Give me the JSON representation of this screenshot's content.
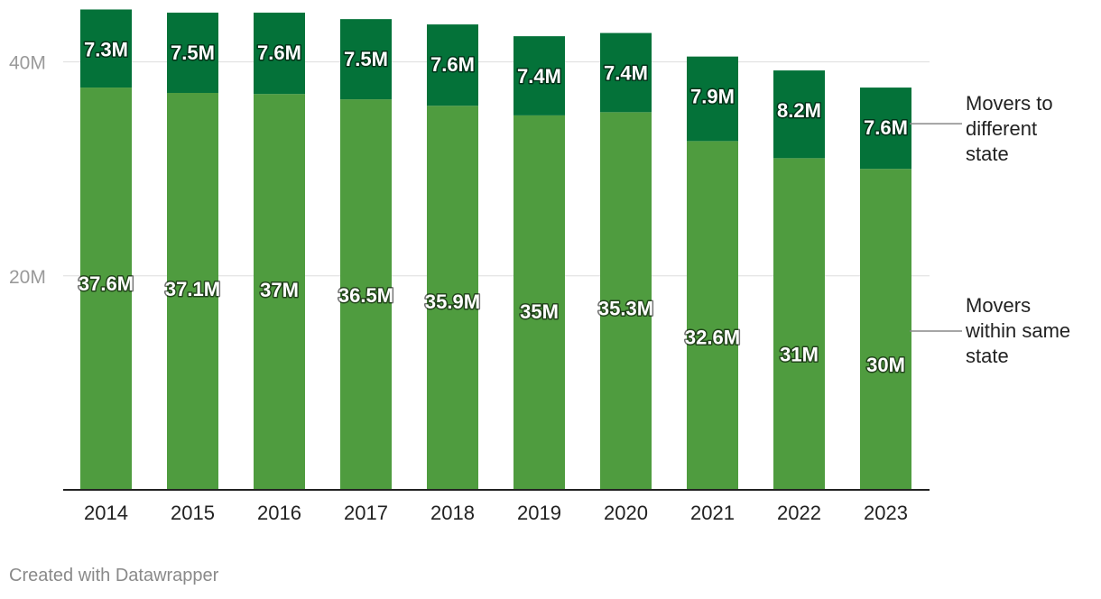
{
  "chart_data": {
    "type": "bar",
    "stacked": true,
    "categories": [
      "2014",
      "2015",
      "2016",
      "2017",
      "2018",
      "2019",
      "2020",
      "2021",
      "2022",
      "2023"
    ],
    "series": [
      {
        "name": "Movers within same state",
        "values": [
          37.6,
          37.1,
          37.0,
          36.5,
          35.9,
          35.0,
          35.3,
          32.6,
          31.0,
          30.0
        ],
        "labels": [
          "37.6M",
          "37.1M",
          "37M",
          "36.5M",
          "35.9M",
          "35M",
          "35.3M",
          "32.6M",
          "31M",
          "30M"
        ],
        "color": "#4f9c3f"
      },
      {
        "name": "Movers to different state",
        "values": [
          7.3,
          7.5,
          7.6,
          7.5,
          7.6,
          7.4,
          7.4,
          7.9,
          8.2,
          7.6
        ],
        "labels": [
          "7.3M",
          "7.5M",
          "7.6M",
          "7.5M",
          "7.6M",
          "7.4M",
          "7.4M",
          "7.9M",
          "8.2M",
          "7.6M"
        ],
        "color": "#047239"
      }
    ],
    "legend_lines": {
      "different_state": [
        "Movers to",
        "different",
        "state"
      ],
      "same_state": [
        "Movers",
        "within same",
        "state"
      ]
    },
    "y_ticks": [
      {
        "value": 20,
        "label": "20M"
      },
      {
        "value": 40,
        "label": "40M"
      }
    ],
    "ylim": [
      0,
      45
    ],
    "grid": true,
    "legend_position": "right, inline labels"
  },
  "footer": {
    "credit": "Created with Datawrapper"
  }
}
